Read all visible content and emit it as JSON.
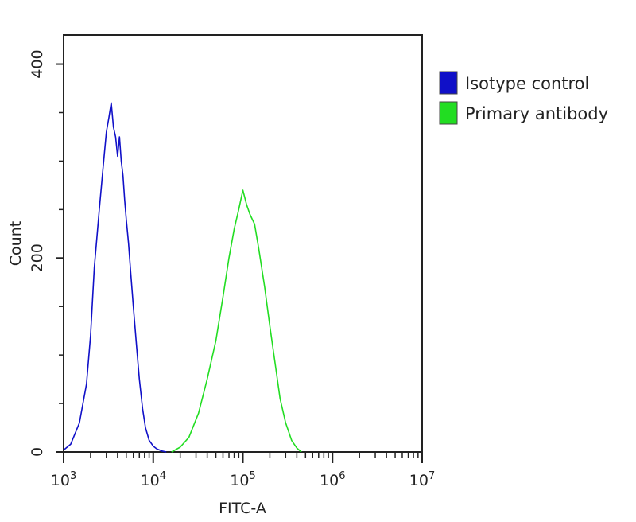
{
  "chart_data": {
    "type": "line",
    "xlabel": "FITC-A",
    "ylabel": "Count",
    "x_scale": "log",
    "xlim": [
      1000,
      10000000
    ],
    "ylim": [
      0,
      430
    ],
    "x_ticks": [
      {
        "value": 1000,
        "base": "10",
        "exp": "3"
      },
      {
        "value": 10000,
        "base": "10",
        "exp": "4"
      },
      {
        "value": 100000,
        "base": "10",
        "exp": "5"
      },
      {
        "value": 1000000,
        "base": "10",
        "exp": "6"
      },
      {
        "value": 10000000,
        "base": "10",
        "exp": "7"
      }
    ],
    "y_ticks": [
      {
        "value": 0,
        "label": "0"
      },
      {
        "value": 200,
        "label": "200"
      },
      {
        "value": 400,
        "label": "400"
      }
    ],
    "legend_position": "top-right",
    "series": [
      {
        "name": "Isotype control",
        "color": "#1010c8",
        "x": [
          1000,
          1200,
          1500,
          1800,
          2000,
          2200,
          2500,
          2800,
          3000,
          3200,
          3400,
          3600,
          3800,
          4000,
          4200,
          4400,
          4600,
          4800,
          5000,
          5300,
          5600,
          6000,
          6500,
          7000,
          7600,
          8200,
          9000,
          10000,
          11000,
          12500,
          14000
        ],
        "y": [
          2,
          8,
          30,
          70,
          120,
          190,
          250,
          300,
          330,
          345,
          360,
          335,
          325,
          305,
          325,
          300,
          285,
          260,
          240,
          215,
          185,
          150,
          110,
          75,
          45,
          25,
          12,
          6,
          3,
          1,
          0
        ]
      },
      {
        "name": "Primary antibody",
        "color": "#22dd22",
        "x": [
          16000,
          20000,
          25000,
          32000,
          40000,
          50000,
          60000,
          70000,
          80000,
          90000,
          100000,
          110000,
          120000,
          135000,
          150000,
          175000,
          200000,
          230000,
          260000,
          300000,
          350000,
          400000,
          450000
        ],
        "y": [
          0,
          5,
          15,
          40,
          75,
          115,
          160,
          200,
          230,
          250,
          270,
          255,
          245,
          235,
          210,
          170,
          130,
          90,
          55,
          30,
          12,
          4,
          0
        ]
      }
    ]
  }
}
